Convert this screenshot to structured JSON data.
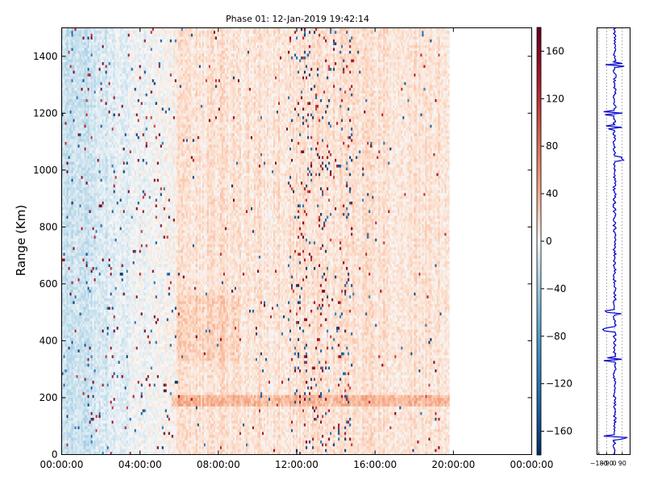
{
  "chart_data": [
    {
      "type": "heatmap",
      "title": "Phase 01: 12-Jan-2019 19:42:14",
      "xlabel": "",
      "ylabel": "Range (Km)",
      "x_ticks": [
        "00:00:00",
        "04:00:00",
        "08:00:00",
        "12:00:00",
        "16:00:00",
        "20:00:00",
        "00:00:00"
      ],
      "x_range_hours": [
        0,
        24
      ],
      "data_extent_hours": [
        0,
        19.8
      ],
      "y_ticks": [
        0,
        200,
        400,
        600,
        800,
        1000,
        1200,
        1400
      ],
      "ylim": [
        0,
        1500
      ],
      "colormap": "RdBu_r",
      "grid": false,
      "colorbar": {
        "ticks": [
          160,
          120,
          80,
          40,
          0,
          -40,
          -80,
          -120,
          -160
        ],
        "tick_labels": [
          "160",
          "120",
          "80",
          "40",
          "0",
          "−40",
          "−80",
          "−120",
          "−160"
        ],
        "vmin": -180,
        "vmax": 180
      },
      "patterns": {
        "background": "mostly weak positive phase (light orange) with noisy columns",
        "blue_band_hours": [
          0,
          5.8
        ],
        "noisy_band_hours": [
          11.5,
          14.8
        ],
        "orange_strip_range_km": [
          170,
          200
        ]
      }
    },
    {
      "type": "line",
      "xlabel": "",
      "ylabel": "",
      "x_ticks": [
        -180,
        -90,
        0,
        90
      ],
      "x_tick_labels": [
        "−180",
        "−90",
        "0",
        "90"
      ],
      "xlim": [
        -200,
        180
      ],
      "ylim": [
        0,
        1500
      ],
      "grid": true,
      "line_color": "#0000cc",
      "series_note": "phase profile vs range, hovering near -10 to 20 with spikes",
      "spikes_range_km": [
        1370,
        1200,
        1150,
        1040,
        500,
        440,
        335,
        60
      ]
    }
  ],
  "colors": {
    "line": "#0000cc",
    "neg_strong": "#053061",
    "neg_light": "#d1e5f0",
    "pos_light": "#fddbc7",
    "pos_strong": "#67001f"
  }
}
